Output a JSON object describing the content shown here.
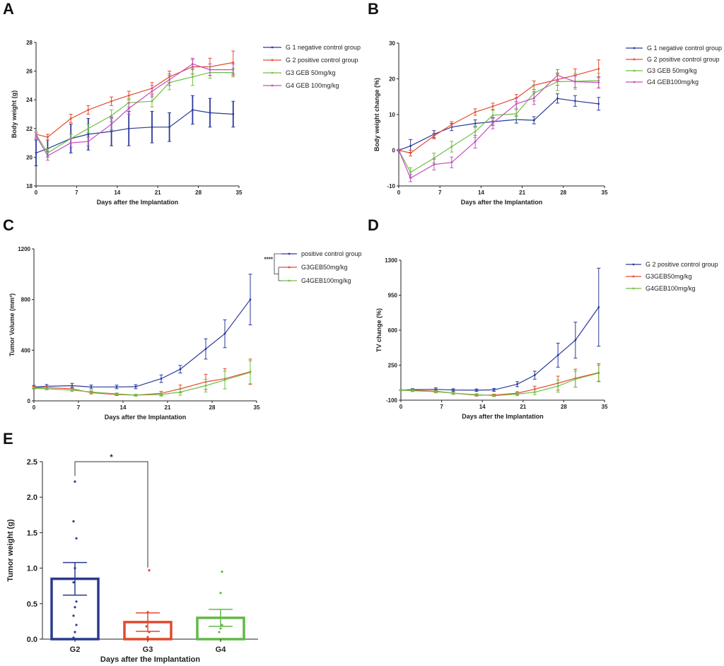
{
  "colors": {
    "G1": "#2a3a9a",
    "G2": "#e64a2e",
    "G3": "#6fbf44",
    "G4": "#c24fc0",
    "c_pos": "#2a3a9a",
    "c_g3": "#e64a2e",
    "c_g4": "#6fbf44",
    "e_g2": "#2a3a8f",
    "e_g3": "#e04a2e",
    "e_g4": "#62b946"
  },
  "panels": {
    "A": {
      "letter": "A"
    },
    "B": {
      "letter": "B"
    },
    "C": {
      "letter": "C"
    },
    "D": {
      "letter": "D"
    },
    "E": {
      "letter": "E"
    }
  },
  "chart_data": [
    {
      "id": "A",
      "type": "line",
      "title": "",
      "xlabel": "Days after the Implantation",
      "ylabel": "Body weight (g)",
      "xlim": [
        0,
        35
      ],
      "ylim": [
        18,
        28
      ],
      "xticks": [
        0,
        7,
        14,
        21,
        28,
        35
      ],
      "yticks": [
        18,
        20,
        22,
        24,
        26,
        28
      ],
      "legend": "top-right",
      "series": [
        {
          "key": "G1",
          "name": "G 1  negative control group",
          "x": [
            0,
            2,
            6,
            9,
            13,
            16,
            20,
            23,
            27,
            30,
            34
          ],
          "y": [
            20.3,
            20.6,
            21.3,
            21.6,
            21.8,
            22.0,
            22.1,
            22.1,
            23.3,
            23.1,
            23.0
          ],
          "err": [
            0.9,
            0.6,
            1.0,
            1.1,
            1.0,
            1.2,
            1.1,
            1.0,
            1.0,
            1.0,
            0.9
          ]
        },
        {
          "key": "G2",
          "name": "G 2  positive control group",
          "x": [
            0,
            2,
            6,
            9,
            13,
            16,
            20,
            23,
            27,
            30,
            34
          ],
          "y": [
            21.6,
            21.4,
            22.7,
            23.3,
            23.9,
            24.3,
            24.8,
            25.6,
            26.3,
            26.3,
            26.6
          ],
          "err": [
            0.2,
            0.2,
            0.3,
            0.3,
            0.3,
            0.3,
            0.4,
            0.4,
            0.5,
            0.6,
            0.8
          ]
        },
        {
          "key": "G3",
          "name": "G3 GEB 50mg/kg",
          "x": [
            0,
            2,
            6,
            9,
            13,
            16,
            20,
            23,
            27,
            30,
            34
          ],
          "y": [
            21.6,
            20.3,
            21.3,
            22.0,
            22.9,
            23.8,
            23.9,
            25.2,
            25.6,
            25.9,
            25.9
          ],
          "err": [
            0.2,
            0.3,
            0.3,
            0.3,
            0.4,
            0.3,
            0.4,
            0.5,
            0.6,
            0.4,
            0.3
          ]
        },
        {
          "key": "G4",
          "name": "G4 GEB 100mg/kg",
          "x": [
            0,
            2,
            6,
            9,
            13,
            16,
            20,
            23,
            27,
            30,
            34
          ],
          "y": [
            21.5,
            20.1,
            21.0,
            21.1,
            22.3,
            23.4,
            24.6,
            25.4,
            26.5,
            26.1,
            26.1
          ],
          "err": [
            0.2,
            0.3,
            0.3,
            0.3,
            0.4,
            0.4,
            0.4,
            0.4,
            0.4,
            0.4,
            0.4
          ]
        }
      ]
    },
    {
      "id": "B",
      "type": "line",
      "title": "",
      "xlabel": "Days after the Implantation",
      "ylabel": "Body weight change (%)",
      "xlim": [
        0,
        35
      ],
      "ylim": [
        -10,
        30
      ],
      "xticks": [
        0,
        7,
        14,
        21,
        28,
        35
      ],
      "yticks": [
        -10,
        0,
        10,
        20,
        30
      ],
      "legend": "top-right",
      "series": [
        {
          "key": "G1",
          "name": "G 1   negative control group",
          "x": [
            0,
            2,
            6,
            9,
            13,
            16,
            20,
            23,
            27,
            30,
            34
          ],
          "y": [
            0,
            1.2,
            4.5,
            6.5,
            7.5,
            8.0,
            8.6,
            8.4,
            14.5,
            13.8,
            13.0
          ],
          "err": [
            0.3,
            1.8,
            1.0,
            1.0,
            1.0,
            1.0,
            1.0,
            1.0,
            1.3,
            1.5,
            1.8
          ]
        },
        {
          "key": "G2",
          "name": "G 2   positive control group",
          "x": [
            0,
            2,
            6,
            9,
            13,
            16,
            20,
            23,
            27,
            30,
            34
          ],
          "y": [
            0,
            -0.8,
            4.0,
            7.2,
            10.7,
            12.3,
            14.6,
            18.2,
            19.8,
            21.0,
            22.8
          ],
          "err": [
            0.3,
            0.8,
            0.8,
            0.8,
            0.9,
            0.9,
            1.0,
            1.2,
            1.6,
            1.8,
            2.5
          ]
        },
        {
          "key": "G3",
          "name": "G3 GEB 50mg/kg",
          "x": [
            0,
            2,
            6,
            9,
            13,
            16,
            20,
            23,
            27,
            30,
            34
          ],
          "y": [
            0,
            -6.2,
            -2.2,
            1.0,
            5.2,
            9.8,
            10.2,
            16.0,
            19.2,
            19.3,
            19.5
          ],
          "err": [
            0.3,
            1.3,
            1.4,
            1.5,
            1.6,
            1.4,
            1.6,
            2.2,
            2.5,
            2.2,
            2.0
          ]
        },
        {
          "key": "G4",
          "name": "G4 GEB100mg/kg",
          "x": [
            0,
            2,
            6,
            9,
            13,
            16,
            20,
            23,
            27,
            30,
            34
          ],
          "y": [
            0,
            -7.8,
            -4.0,
            -3.4,
            2.4,
            7.6,
            13.0,
            14.6,
            21.0,
            19.2,
            19.0
          ],
          "err": [
            0.3,
            1.0,
            1.5,
            1.5,
            1.8,
            1.6,
            1.6,
            1.8,
            1.6,
            1.6,
            1.6
          ]
        }
      ]
    },
    {
      "id": "C",
      "type": "line",
      "title": "",
      "xlabel": "Days after the Implantation",
      "ylabel": "Tumor Volume (mm³)",
      "xlim": [
        0,
        35
      ],
      "ylim": [
        0,
        1200
      ],
      "xticks": [
        0,
        7,
        14,
        21,
        28,
        35
      ],
      "yticks": [
        0,
        400,
        800,
        1200
      ],
      "legend": "top-right",
      "significance": "****",
      "series": [
        {
          "key": "c_pos",
          "name": "positive control group",
          "x": [
            0,
            2,
            6,
            9,
            13,
            16,
            20,
            23,
            27,
            30,
            34
          ],
          "y": [
            110,
            115,
            120,
            110,
            110,
            112,
            175,
            250,
            410,
            530,
            800
          ],
          "err": [
            12,
            14,
            18,
            15,
            14,
            16,
            30,
            30,
            80,
            110,
            200
          ]
        },
        {
          "key": "c_g3",
          "name": "G3GEB50mg/kg",
          "x": [
            0,
            2,
            6,
            9,
            13,
            16,
            20,
            23,
            27,
            30,
            34
          ],
          "y": [
            105,
            105,
            95,
            65,
            50,
            45,
            60,
            95,
            150,
            175,
            230
          ],
          "err": [
            10,
            10,
            12,
            10,
            8,
            8,
            15,
            30,
            60,
            80,
            100
          ]
        },
        {
          "key": "c_g4",
          "name": "G4GEB100mg/kg",
          "x": [
            0,
            2,
            6,
            9,
            13,
            16,
            20,
            23,
            27,
            30,
            34
          ],
          "y": [
            100,
            95,
            85,
            70,
            55,
            45,
            50,
            70,
            120,
            165,
            225
          ],
          "err": [
            8,
            8,
            10,
            10,
            8,
            8,
            12,
            25,
            50,
            70,
            90
          ]
        }
      ]
    },
    {
      "id": "D",
      "type": "line",
      "title": "",
      "xlabel": "Days after the Implantation",
      "ylabel": "TV  change (%)",
      "xlim": [
        0,
        35
      ],
      "ylim": [
        -100,
        1300
      ],
      "xticks": [
        0,
        7,
        14,
        21,
        28,
        35
      ],
      "yticks": [
        -100,
        250,
        600,
        950,
        1300
      ],
      "legend": "top-right",
      "series": [
        {
          "key": "c_pos",
          "name": "G 2 positive control group",
          "x": [
            0,
            2,
            6,
            9,
            13,
            16,
            20,
            23,
            27,
            30,
            34
          ],
          "y": [
            0,
            5,
            8,
            2,
            0,
            3,
            60,
            150,
            350,
            500,
            830
          ],
          "err": [
            5,
            10,
            15,
            12,
            12,
            14,
            25,
            40,
            120,
            180,
            390
          ]
        },
        {
          "key": "c_g3",
          "name": "G3GEB50mg/kg",
          "x": [
            0,
            2,
            6,
            9,
            13,
            16,
            20,
            23,
            27,
            30,
            34
          ],
          "y": [
            0,
            0,
            -10,
            -30,
            -50,
            -50,
            -30,
            10,
            70,
            120,
            175
          ],
          "err": [
            5,
            10,
            12,
            12,
            10,
            10,
            15,
            30,
            70,
            90,
            90
          ]
        },
        {
          "key": "c_g4",
          "name": "G4GEB100mg/kg",
          "x": [
            0,
            2,
            6,
            9,
            13,
            16,
            20,
            23,
            27,
            30,
            34
          ],
          "y": [
            0,
            -5,
            -15,
            -30,
            -45,
            -55,
            -40,
            -20,
            40,
            110,
            170
          ],
          "err": [
            5,
            10,
            12,
            12,
            10,
            10,
            15,
            25,
            60,
            80,
            80
          ]
        }
      ]
    },
    {
      "id": "E",
      "type": "bar",
      "title": "",
      "xlabel": "Days after the Implantation",
      "ylabel": "Tumor weight (g)",
      "ylim": [
        0,
        2.5
      ],
      "yticks": [
        "0.0",
        "0.5",
        "1.0",
        "1.5",
        "2.0",
        "2.5"
      ],
      "categories": [
        "G2",
        "G3",
        "G4"
      ],
      "values": [
        0.85,
        0.24,
        0.3
      ],
      "sem": [
        0.23,
        0.13,
        0.12
      ],
      "points": [
        [
          0.02,
          0.1,
          0.2,
          0.33,
          0.45,
          0.53,
          0.8,
          1.0,
          1.42,
          1.66,
          2.22
        ],
        [
          0.0,
          0.03,
          0.1,
          0.18,
          0.38,
          0.97
        ],
        [
          0.1,
          0.15,
          0.2,
          0.3,
          0.65,
          0.95
        ]
      ],
      "significance": {
        "label": "*",
        "from": "G2",
        "to": "G3"
      }
    }
  ]
}
